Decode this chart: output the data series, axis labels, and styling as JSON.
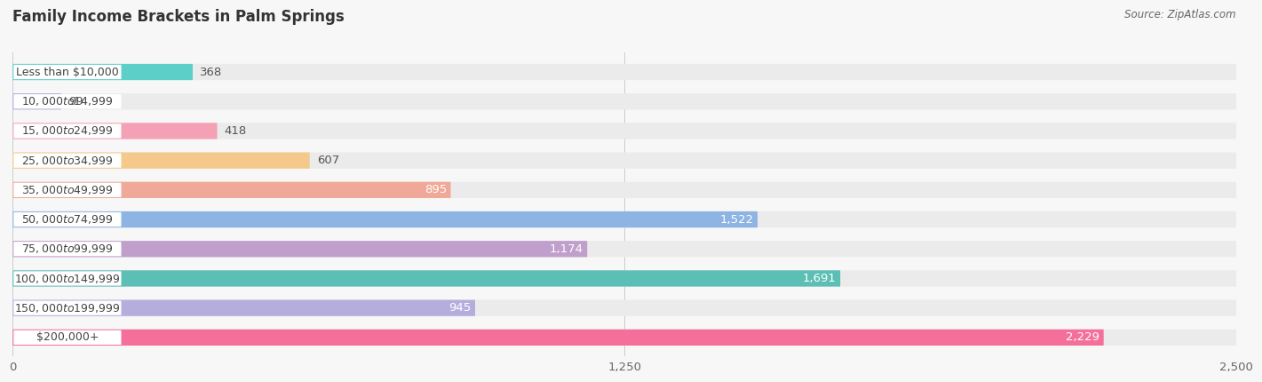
{
  "title": "Family Income Brackets in Palm Springs",
  "source": "Source: ZipAtlas.com",
  "categories": [
    "Less than $10,000",
    "$10,000 to $14,999",
    "$15,000 to $24,999",
    "$25,000 to $34,999",
    "$35,000 to $49,999",
    "$50,000 to $74,999",
    "$75,000 to $99,999",
    "$100,000 to $149,999",
    "$150,000 to $199,999",
    "$200,000+"
  ],
  "values": [
    368,
    99,
    418,
    607,
    895,
    1522,
    1174,
    1691,
    945,
    2229
  ],
  "bar_colors": [
    "#5DCFC9",
    "#B5AEDD",
    "#F4A0B5",
    "#F5C98A",
    "#F0A898",
    "#8EB4E3",
    "#C09FCC",
    "#5BBFB5",
    "#B5AEDD",
    "#F4709A"
  ],
  "xlim": [
    0,
    2500
  ],
  "xticks": [
    0,
    1250,
    2500
  ],
  "background_color": "#f7f7f7",
  "bar_bg_color": "#e8e8e8",
  "row_bg_color": "#f0f0f0",
  "title_fontsize": 12,
  "source_fontsize": 8.5,
  "value_fontsize": 9.5,
  "category_fontsize": 9,
  "tick_fontsize": 9.5,
  "value_threshold": 700
}
